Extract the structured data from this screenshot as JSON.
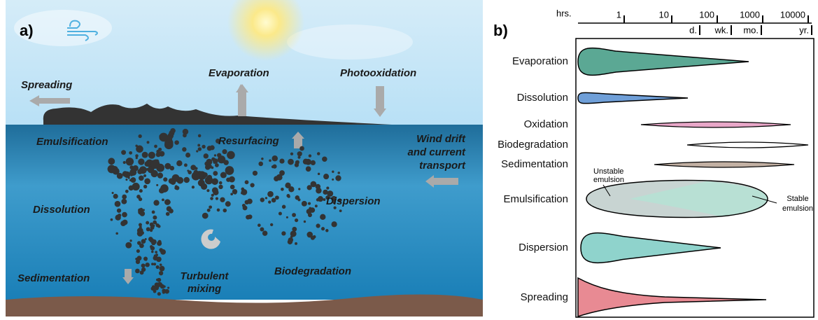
{
  "panel_a": {
    "label": "a)",
    "labels": {
      "spreading": "Spreading",
      "evaporation": "Evaporation",
      "photooxidation": "Photooxidation",
      "emulsification": "Emulsification",
      "resurfacing": "Resurfacing",
      "wind_drift": [
        "Wind drift",
        "and current",
        "transport"
      ],
      "dissolution": "Dissolution",
      "dispersion": "Dispersion",
      "turbulent_mixing": [
        "Turbulent",
        "mixing"
      ],
      "biodegradation": "Biodegradation",
      "sedimentation": "Sedimentation"
    }
  },
  "panel_b": {
    "label": "b)",
    "axis": {
      "unit": "hrs.",
      "ticks": [
        "1",
        "10",
        "100",
        "1000",
        "10000"
      ],
      "sub_ticks": [
        "d.",
        "wk.",
        "mo.",
        "yr."
      ]
    },
    "processes": [
      "Evaporation",
      "Dissolution",
      "Oxidation",
      "Biodegradation",
      "Sedimentation",
      "Emulsification",
      "Dispersion",
      "Spreading"
    ],
    "notes": {
      "unstable": [
        "Unstable",
        "emulsion"
      ],
      "stable": [
        "Stable",
        "emulsion"
      ]
    }
  }
}
